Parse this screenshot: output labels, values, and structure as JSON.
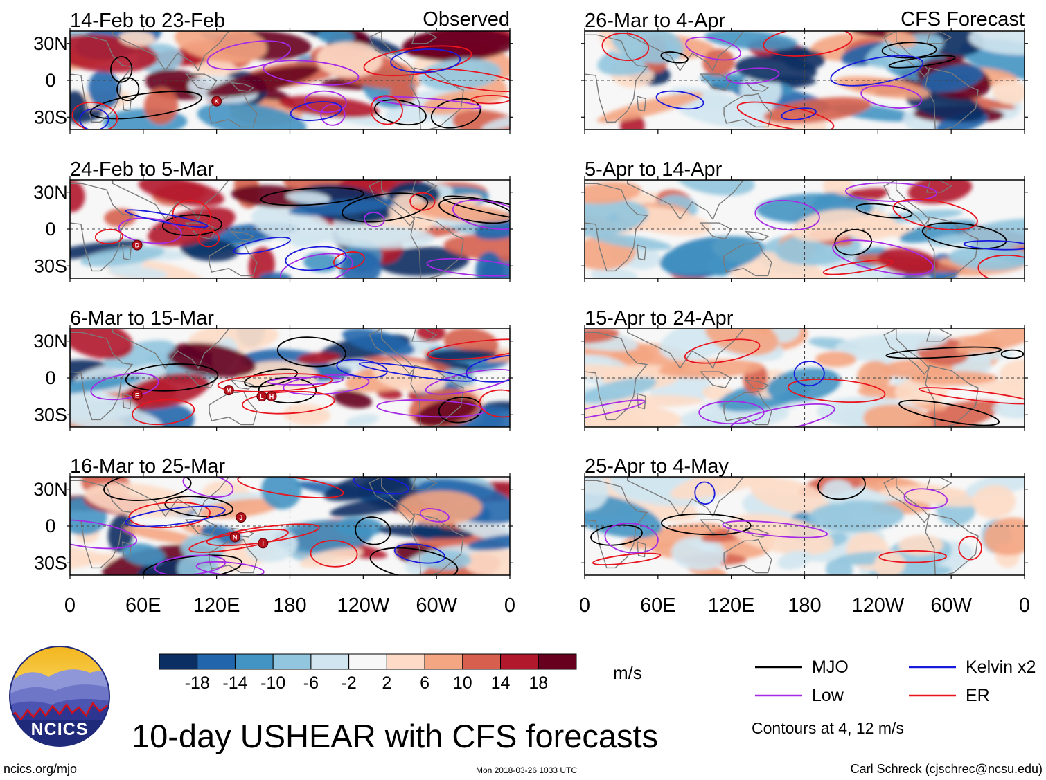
{
  "chart_data": {
    "type": "heatmap",
    "title": "10-day USHEAR with CFS forecasts",
    "variable_units": "m/s",
    "colorbar": {
      "ticks": [
        "-18",
        "-14",
        "-10",
        "-6",
        "-2",
        "2",
        "6",
        "10",
        "14",
        "18"
      ],
      "colors": [
        "#0b2f63",
        "#2166ac",
        "#4393c3",
        "#92c5de",
        "#d1e5f0",
        "#f7f7f7",
        "#fddbc7",
        "#f4a582",
        "#d6604d",
        "#b2182b",
        "#67001f"
      ]
    },
    "contour_legend": [
      {
        "label": "MJO",
        "color": "#000000"
      },
      {
        "label": "Kelvin x2",
        "color": "#1a1adc"
      },
      {
        "label": "Low",
        "color": "#a52ae6"
      },
      {
        "label": "ER",
        "color": "#e8141e"
      }
    ],
    "contour_note": "Contours at 4, 12 m/s",
    "x_ticks": [
      "0",
      "60E",
      "120E",
      "180",
      "120W",
      "60W",
      "0"
    ],
    "y_ticks": [
      "30N",
      "0",
      "30S"
    ],
    "xlim": [
      0,
      360
    ],
    "ylim": [
      -40,
      40
    ],
    "columns": {
      "left": "Observed",
      "right": "CFS Forecast"
    },
    "panels": [
      {
        "period": "14-Feb to 23-Feb",
        "column": "Observed",
        "storms": [
          {
            "id": "K",
            "lon": 120,
            "lat": -17
          }
        ]
      },
      {
        "period": "24-Feb to 5-Mar",
        "column": "Observed",
        "storms": [
          {
            "id": "D",
            "lon": 55,
            "lat": -13
          }
        ]
      },
      {
        "period": "6-Mar to 15-Mar",
        "column": "Observed",
        "storms": [
          {
            "id": "E",
            "lon": 55,
            "lat": -14
          },
          {
            "id": "M",
            "lon": 130,
            "lat": -10
          },
          {
            "id": "L",
            "lon": 157,
            "lat": -15
          },
          {
            "id": "H",
            "lon": 165,
            "lat": -15
          }
        ]
      },
      {
        "period": "16-Mar to 25-Mar",
        "column": "Observed",
        "storms": [
          {
            "id": "J",
            "lon": 140,
            "lat": 7
          },
          {
            "id": "N",
            "lon": 135,
            "lat": -9
          },
          {
            "id": "I",
            "lon": 158,
            "lat": -14
          }
        ]
      },
      {
        "period": "26-Mar to 4-Apr",
        "column": "CFS Forecast",
        "storms": []
      },
      {
        "period": "5-Apr to 14-Apr",
        "column": "CFS Forecast",
        "storms": []
      },
      {
        "period": "15-Apr to 24-Apr",
        "column": "CFS Forecast",
        "storms": []
      },
      {
        "period": "25-Apr to 4-May",
        "column": "CFS Forecast",
        "storms": []
      }
    ]
  },
  "logo_text": "NCICS",
  "footer": {
    "site": "ncics.org/mjo",
    "timestamp": "Mon 2018-03-26 1033 UTC",
    "credit": "Carl Schreck (cjschrec@ncsu.edu)"
  }
}
